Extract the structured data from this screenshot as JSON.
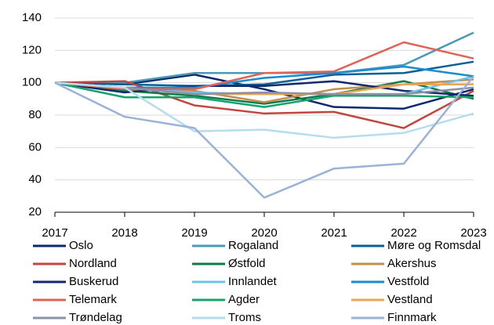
{
  "chart_data": {
    "type": "line",
    "categories": [
      "2017",
      "2018",
      "2019",
      "2020",
      "2021",
      "2022",
      "2023"
    ],
    "ylim": [
      20,
      140
    ],
    "yticks": [
      20,
      40,
      60,
      80,
      100,
      120,
      140
    ],
    "grid": true,
    "series": [
      {
        "name": "Oslo",
        "color": "#0b2a6b",
        "values": [
          100,
          99,
          105,
          96,
          85,
          84,
          96
        ]
      },
      {
        "name": "Rogaland",
        "color": "#4a9ab5",
        "values": [
          100,
          100,
          106,
          106,
          106,
          111,
          131
        ]
      },
      {
        "name": "Møre og Romsdal",
        "color": "#0c5f94",
        "values": [
          100,
          99,
          98,
          99,
          105,
          106,
          113
        ]
      },
      {
        "name": "Nordland",
        "color": "#c0463f",
        "values": [
          100,
          101,
          86,
          81,
          82,
          72,
          95
        ]
      },
      {
        "name": "Østfold",
        "color": "#0f7a4a",
        "values": [
          100,
          95,
          92,
          87,
          93,
          101,
          90
        ]
      },
      {
        "name": "Akershus",
        "color": "#c38d4f",
        "values": [
          100,
          96,
          95,
          88,
          96,
          99,
          102
        ]
      },
      {
        "name": "Buskerud",
        "color": "#14286e",
        "values": [
          100,
          94,
          98,
          98,
          101,
          95,
          92
        ]
      },
      {
        "name": "Innlandet",
        "color": "#6cc3e8",
        "values": [
          100,
          97,
          94,
          93,
          93,
          93,
          104
        ]
      },
      {
        "name": "Vestfold",
        "color": "#1a8ccf",
        "values": [
          100,
          97,
          97,
          103,
          106,
          110,
          104
        ]
      },
      {
        "name": "Telemark",
        "color": "#e0635a",
        "values": [
          100,
          96,
          96,
          106,
          107,
          125,
          115
        ]
      },
      {
        "name": "Agder",
        "color": "#16a36b",
        "values": [
          100,
          91,
          91,
          85,
          92,
          92,
          91
        ]
      },
      {
        "name": "Vestland",
        "color": "#e8a654",
        "values": [
          100,
          97,
          93,
          93,
          93,
          99,
          99
        ]
      },
      {
        "name": "Trøndelag",
        "color": "#8e90a8",
        "values": [
          100,
          97,
          93,
          94,
          93,
          93,
          97
        ]
      },
      {
        "name": "Troms",
        "color": "#b5dcef",
        "values": [
          100,
          97,
          70,
          71,
          66,
          69,
          81
        ]
      },
      {
        "name": "Finnmark",
        "color": "#9bb1d6",
        "values": [
          100,
          79,
          72,
          29,
          47,
          50,
          104
        ]
      }
    ]
  }
}
